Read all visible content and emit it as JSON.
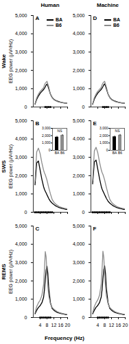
{
  "figure": {
    "column_titles": [
      "Human",
      "Machine"
    ],
    "row_labels": [
      "Wake",
      "SWS",
      "REMS"
    ],
    "ylabel": "EEG power (µV²/Hz)",
    "xlabel": "Frequency (Hz)"
  },
  "chart_data": [
    {
      "type": "line",
      "title": "A",
      "legend": "top-right",
      "tick_labels": "y",
      "x": [
        1,
        2,
        3,
        4,
        5,
        6,
        6.5,
        7,
        7.5,
        8,
        8.5,
        9,
        10,
        11,
        12,
        13,
        14,
        15,
        16,
        17,
        18,
        19,
        20
      ],
      "series": [
        {
          "name": "BA",
          "color": "#000000",
          "values": [
            150,
            420,
            600,
            750,
            850,
            950,
            1020,
            1100,
            1200,
            1250,
            1150,
            1000,
            700,
            520,
            420,
            360,
            320,
            290,
            260,
            240,
            220,
            210,
            200
          ]
        },
        {
          "name": "B6",
          "color": "#8c8c8c",
          "values": [
            180,
            500,
            700,
            850,
            950,
            1050,
            1200,
            1300,
            1350,
            1400,
            1250,
            1100,
            700,
            500,
            400,
            340,
            300,
            270,
            250,
            230,
            210,
            200,
            190
          ]
        }
      ],
      "significant_frequencies": [
        7,
        8,
        9,
        10
      ],
      "xlim": [
        0,
        20
      ],
      "xticks": [
        4,
        8,
        12,
        16,
        20
      ],
      "ylim": [
        0,
        5000
      ],
      "yticks": [
        0,
        {
          "value": 1000,
          "label": "1,000"
        },
        {
          "value": 2000,
          "label": "2,000"
        },
        {
          "value": 3000,
          "label": "3,000"
        },
        {
          "value": 4000,
          "label": "4,000"
        },
        {
          "value": 5000,
          "label": "5,000"
        }
      ]
    },
    {
      "type": "line",
      "title": "B",
      "tick_labels": "y",
      "x": [
        1,
        2,
        3,
        4,
        5,
        6,
        6.5,
        7,
        7.5,
        8,
        8.5,
        9,
        10,
        11,
        12,
        13,
        14,
        15,
        16,
        17,
        18,
        19,
        20
      ],
      "series": [
        {
          "name": "BA",
          "color": "#000000",
          "values": [
            1500,
            2700,
            2800,
            2300,
            1800,
            1400,
            1250,
            1150,
            1050,
            950,
            850,
            750,
            600,
            500,
            420,
            350,
            300,
            260,
            230,
            200,
            180,
            160,
            150
          ]
        },
        {
          "name": "B6",
          "color": "#8c8c8c",
          "values": [
            1700,
            3300,
            3500,
            3200,
            2700,
            2300,
            2150,
            2050,
            1900,
            1750,
            1550,
            1350,
            1000,
            700,
            550,
            450,
            380,
            320,
            280,
            250,
            220,
            200,
            180
          ]
        }
      ],
      "significant_frequencies": [
        1,
        2,
        3,
        4,
        5,
        6,
        7,
        8,
        9,
        10,
        11
      ],
      "xlim": [
        0,
        20
      ],
      "xticks": [
        4,
        8,
        12,
        16,
        20
      ],
      "ylim": [
        0,
        5000
      ],
      "yticks": [
        0,
        {
          "value": 1000,
          "label": "1,000"
        },
        {
          "value": 2000,
          "label": "2,000"
        },
        {
          "value": 3000,
          "label": "3,000"
        },
        {
          "value": 4000,
          "label": "4,000"
        },
        {
          "value": 5000,
          "label": "5,000"
        }
      ],
      "inset": {
        "type": "bar",
        "categories": [
          "BA",
          "B6"
        ],
        "values": [
          1800,
          2050
        ],
        "errors": [
          120,
          100
        ],
        "colors": [
          "#000000",
          "#8c8c8c"
        ],
        "annotation": "NS",
        "ylim": [
          0,
          3000
        ],
        "yticks": [
          0,
          {
            "value": 1000,
            "label": "1,000"
          },
          {
            "value": 2000,
            "label": "2,000"
          },
          {
            "value": 3000,
            "label": "3,000"
          }
        ]
      }
    },
    {
      "type": "line",
      "title": "C",
      "x": [
        1,
        2,
        3,
        4,
        5,
        6,
        6.5,
        7,
        7.5,
        8,
        8.5,
        9,
        10,
        11,
        12,
        13,
        14,
        15,
        16,
        17,
        18,
        19,
        20
      ],
      "series": [
        {
          "name": "BA",
          "color": "#000000",
          "values": [
            200,
            400,
            550,
            650,
            800,
            1100,
            1500,
            2100,
            2600,
            2800,
            2400,
            1600,
            800,
            500,
            400,
            330,
            280,
            250,
            220,
            200,
            180,
            160,
            150
          ]
        },
        {
          "name": "B6",
          "color": "#8c8c8c",
          "values": [
            250,
            600,
            800,
            950,
            1200,
            1800,
            2600,
            3600,
            3300,
            2400,
            1700,
            1200,
            750,
            550,
            450,
            380,
            320,
            280,
            250,
            220,
            200,
            180,
            160
          ]
        }
      ],
      "significant_frequencies": [
        4,
        5,
        6,
        7,
        8,
        9,
        10
      ],
      "xlim": [
        0,
        20
      ],
      "xticks": [
        4,
        8,
        12,
        16,
        20
      ],
      "ylim": [
        0,
        5000
      ],
      "yticks": [
        0,
        {
          "value": 1000,
          "label": "1,000"
        },
        {
          "value": 2000,
          "label": "2,000"
        },
        {
          "value": 3000,
          "label": "3,000"
        },
        {
          "value": 4000,
          "label": "4,000"
        },
        {
          "value": 5000,
          "label": "5,000"
        }
      ]
    },
    {
      "type": "line",
      "title": "D",
      "legend": "top-right",
      "tick_labels": "y",
      "x": [
        1,
        2,
        3,
        4,
        5,
        6,
        6.5,
        7,
        7.5,
        8,
        8.5,
        9,
        10,
        11,
        12,
        13,
        14,
        15,
        16,
        17,
        18,
        19,
        20
      ],
      "series": [
        {
          "name": "BA",
          "color": "#000000",
          "values": [
            150,
            430,
            610,
            760,
            860,
            960,
            1030,
            1110,
            1210,
            1260,
            1150,
            990,
            700,
            520,
            420,
            360,
            320,
            290,
            260,
            240,
            220,
            210,
            200
          ]
        },
        {
          "name": "B6",
          "color": "#8c8c8c",
          "values": [
            180,
            510,
            710,
            860,
            960,
            1060,
            1210,
            1310,
            1360,
            1400,
            1240,
            1090,
            700,
            500,
            400,
            340,
            300,
            270,
            250,
            230,
            210,
            200,
            190
          ]
        }
      ],
      "significant_frequencies": [
        7,
        8,
        9,
        10
      ],
      "xlim": [
        0,
        20
      ],
      "xticks": [
        4,
        8,
        12,
        16,
        20
      ],
      "ylim": [
        0,
        5000
      ],
      "yticks": [
        0,
        {
          "value": 1000,
          "label": "1,000"
        },
        {
          "value": 2000,
          "label": "2,000"
        },
        {
          "value": 3000,
          "label": "3,000"
        },
        {
          "value": 4000,
          "label": "4,000"
        },
        {
          "value": 5000,
          "label": "5,000"
        }
      ]
    },
    {
      "type": "line",
      "title": "E",
      "tick_labels": "y",
      "x": [
        1,
        2,
        3,
        4,
        5,
        6,
        6.5,
        7,
        7.5,
        8,
        8.5,
        9,
        10,
        11,
        12,
        13,
        14,
        15,
        16,
        17,
        18,
        19,
        20
      ],
      "series": [
        {
          "name": "BA",
          "color": "#000000",
          "values": [
            1550,
            2750,
            2850,
            2350,
            1850,
            1420,
            1270,
            1160,
            1060,
            960,
            860,
            760,
            600,
            500,
            420,
            350,
            300,
            260,
            230,
            200,
            180,
            160,
            150
          ]
        },
        {
          "name": "B6",
          "color": "#8c8c8c",
          "values": [
            1750,
            3350,
            3550,
            3250,
            2750,
            2330,
            2170,
            2070,
            1920,
            1760,
            1560,
            1360,
            1000,
            700,
            550,
            450,
            380,
            320,
            280,
            250,
            220,
            200,
            180
          ]
        }
      ],
      "significant_frequencies": [
        1,
        2,
        3,
        4,
        5,
        6,
        7,
        8,
        9,
        10,
        11
      ],
      "xlim": [
        0,
        20
      ],
      "xticks": [
        4,
        8,
        12,
        16,
        20
      ],
      "ylim": [
        0,
        5000
      ],
      "yticks": [
        0,
        {
          "value": 1000,
          "label": "1,000"
        },
        {
          "value": 2000,
          "label": "2,000"
        },
        {
          "value": 3000,
          "label": "3,000"
        },
        {
          "value": 4000,
          "label": "4,000"
        },
        {
          "value": 5000,
          "label": "5,000"
        }
      ],
      "inset": {
        "type": "bar",
        "categories": [
          "BA",
          "B6"
        ],
        "values": [
          1850,
          2080
        ],
        "errors": [
          120,
          100
        ],
        "colors": [
          "#000000",
          "#8c8c8c"
        ],
        "annotation": "NS",
        "ylim": [
          0,
          3000
        ],
        "yticks": [
          0,
          {
            "value": 1000,
            "label": "1,000"
          },
          {
            "value": 2000,
            "label": "2,000"
          },
          {
            "value": 3000,
            "label": "3,000"
          }
        ]
      }
    },
    {
      "type": "line",
      "title": "F",
      "x": [
        1,
        2,
        3,
        4,
        5,
        6,
        6.5,
        7,
        7.5,
        8,
        8.5,
        9,
        10,
        11,
        12,
        13,
        14,
        15,
        16,
        17,
        18,
        19,
        20
      ],
      "series": [
        {
          "name": "BA",
          "color": "#000000",
          "values": [
            200,
            400,
            560,
            660,
            810,
            1120,
            1520,
            2120,
            2620,
            2820,
            2400,
            1600,
            800,
            500,
            400,
            330,
            280,
            250,
            220,
            200,
            180,
            160,
            150
          ]
        },
        {
          "name": "B6",
          "color": "#8c8c8c",
          "values": [
            250,
            600,
            810,
            960,
            1210,
            1820,
            2620,
            3620,
            3300,
            2400,
            1700,
            1200,
            750,
            550,
            450,
            380,
            320,
            280,
            250,
            220,
            200,
            180,
            160
          ]
        }
      ],
      "significant_frequencies": [
        4,
        5,
        6,
        7,
        8,
        9,
        10
      ],
      "xlim": [
        0,
        20
      ],
      "xticks": [
        4,
        8,
        12,
        16,
        20
      ],
      "ylim": [
        0,
        5000
      ],
      "yticks": [
        0,
        {
          "value": 1000,
          "label": "1,000"
        },
        {
          "value": 2000,
          "label": "2,000"
        },
        {
          "value": 3000,
          "label": "3,000"
        },
        {
          "value": 4000,
          "label": "4,000"
        },
        {
          "value": 5000,
          "label": "5,000"
        }
      ]
    }
  ]
}
